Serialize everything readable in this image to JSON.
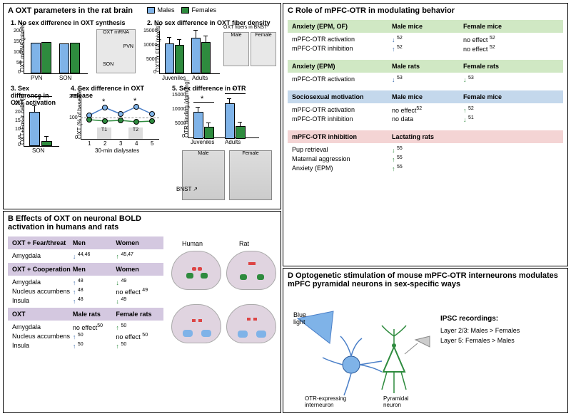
{
  "colors": {
    "male": "#7fb3e8",
    "female": "#2e8b3e",
    "purple_bg": "#d4c8e0",
    "green_bg": "#d0e8c4",
    "blue_bg": "#c4d8ec",
    "pink_bg": "#f4d4d4"
  },
  "panelA": {
    "title": "A   OXT parameters in the rat brain",
    "legend_male": "Males",
    "legend_female": "Females",
    "sub1": {
      "title": "1. No sex difference in OXT synthesis",
      "ylabel": "OXT mRNA (pixels)",
      "cats": [
        "PVN",
        "SON"
      ],
      "male_vals": [
        145,
        140
      ],
      "female_vals": [
        148,
        142
      ],
      "ylim": [
        0,
        200
      ],
      "ticks": [
        0,
        50,
        100,
        150,
        200
      ],
      "img_labels": [
        "OXT mRNA",
        "PVN",
        "SON"
      ]
    },
    "sub2": {
      "title": "2. No sex difference in OXT fiber density",
      "ylabel": "OXT-ir FFA (pixels)",
      "cats": [
        "Juveniles",
        "Adults"
      ],
      "male_vals": [
        10500,
        12500
      ],
      "female_vals": [
        10000,
        11000
      ],
      "ylim": [
        0,
        15000
      ],
      "ticks": [
        0,
        5000,
        10000,
        15000
      ],
      "img_title": "OXT fibers in BNST",
      "img_male": "Male",
      "img_female": "Female"
    },
    "sub3": {
      "title": "3. Sex difference in OXT activation",
      "ylabel": "OXT+Fos-ir cells (#)",
      "cat": "SON",
      "male_val": 20,
      "female_val": 3,
      "ylim": [
        0,
        25
      ],
      "ticks": [
        0,
        5,
        10,
        15,
        20,
        25
      ]
    },
    "sub4": {
      "title": "4. Sex difference in OXT release",
      "ylabel": "OXT (% of baseline)",
      "xlabel": "30-min dialysates",
      "xticks": [
        1,
        2,
        3,
        4,
        5
      ],
      "male_vals": [
        110,
        145,
        115,
        150,
        118
      ],
      "female_vals": [
        90,
        85,
        88,
        82,
        86
      ],
      "t1": "T1",
      "t2": "T2",
      "ylim": [
        0,
        200
      ],
      "ticks": [
        0,
        100,
        200
      ]
    },
    "sub5": {
      "title": "5. Sex difference in OTR",
      "ylabel": "OTR binding (dpm/mg)",
      "cats": [
        "Juveniles",
        "Adults"
      ],
      "male_vals": [
        9500,
        12500
      ],
      "female_vals": [
        4200,
        4500
      ],
      "ylim": [
        0,
        15000
      ],
      "ticks": [
        0,
        5000,
        10000,
        15000
      ],
      "bnst_label": "BNST",
      "img_male": "Male",
      "img_female": "Female"
    }
  },
  "panelB": {
    "title": "B   Effects of OXT on neuronal BOLD activation in humans and rats",
    "cat1": {
      "header": "OXT + Fear/threat",
      "col2": "Men",
      "col3": "Women",
      "rows": [
        {
          "label": "Amygdala",
          "m_dir": "down",
          "m_ref": "44,46",
          "f_dir": "up",
          "f_ref": "45,47"
        }
      ]
    },
    "cat2": {
      "header": "OXT + Cooperation",
      "col2": "Men",
      "col3": "Women",
      "rows": [
        {
          "label": "Amygdala",
          "m_dir": "up",
          "m_ref": "48",
          "f_dir": "down",
          "f_ref": "49"
        },
        {
          "label": "Nucleus accumbens",
          "m_dir": "up",
          "m_ref": "48",
          "f_txt": "no effect",
          "f_ref": "49"
        },
        {
          "label": "Insula",
          "m_dir": "up",
          "m_ref": "48",
          "f_dir": "down",
          "f_ref": "49"
        }
      ]
    },
    "cat3": {
      "header": "OXT",
      "col2": "Male rats",
      "col3": "Female rats",
      "rows": [
        {
          "label": "Amygdala",
          "m_txt": "no effect",
          "m_ref": "50",
          "f_dir": "up",
          "f_ref": "50"
        },
        {
          "label": "Nucleus accumbens",
          "m_dir": "up",
          "m_ref": "50",
          "f_txt": "no effect",
          "f_ref": "50"
        },
        {
          "label": "Insula",
          "m_dir": "up",
          "m_ref": "50",
          "f_dir": "up",
          "f_ref": "50"
        }
      ]
    },
    "brain_labels": {
      "human": "Human",
      "rat": "Rat"
    }
  },
  "panelC": {
    "title": "C   Role of mPFC-OTR in modulating behavior",
    "cat1": {
      "header": "Anxiety (EPM, OF)",
      "col2": "Male mice",
      "col3": "Female mice",
      "rows": [
        {
          "label": "mPFC-OTR activation",
          "m_dir": "down",
          "m_ref": "52",
          "f_txt": "no effect",
          "f_ref": "52"
        },
        {
          "label": "mPFC-OTR inhibition",
          "m_dir": "up",
          "m_ref": "52",
          "f_txt": "no effect",
          "f_ref": "52"
        }
      ]
    },
    "cat2": {
      "header": "Anxiety (EPM)",
      "col2": "Male rats",
      "col3": "Female rats",
      "rows": [
        {
          "label": "mPFC-OTR activation",
          "m_dir": "down",
          "m_ref": "53",
          "f_dir": "down",
          "f_ref": "53"
        }
      ]
    },
    "cat3": {
      "header": "Sociosexual motivation",
      "col2": "Male mice",
      "col3": "Female mice",
      "rows": [
        {
          "label": "mPFC-OTR activation",
          "m_txt": "no effect",
          "m_ref": "52",
          "f_dir": "up",
          "f_ref": "52"
        },
        {
          "label": "mPFC-OTR inhibition",
          "m_txt": "no data",
          "f_dir": "down",
          "f_ref": "51"
        }
      ]
    },
    "cat4": {
      "header": "mPFC-OTR inhibition",
      "col2": "Lactating rats",
      "rows": [
        {
          "label": "Pup retrieval",
          "f_dir": "down",
          "f_ref": "55"
        },
        {
          "label": "Maternal aggression",
          "f_dir": "up",
          "f_ref": "55"
        },
        {
          "label": "Anxiety (EPM)",
          "f_dir": "up",
          "f_ref": "55"
        }
      ]
    }
  },
  "panelD": {
    "title": "D   Optogenetic stimulation of mouse mPFC-OTR interneurons modulates mPFC pyramidal neurons in sex-specific ways",
    "blue_light": "Blue light",
    "ipsc_title": "IPSC recordings:",
    "ipsc_l23": "Layer 2/3:  Males > Females",
    "ipsc_l5": "Layer 5:     Females > Males",
    "interneuron": "OTR-expressing interneuron",
    "pyramidal": "Pyramidal neuron"
  }
}
